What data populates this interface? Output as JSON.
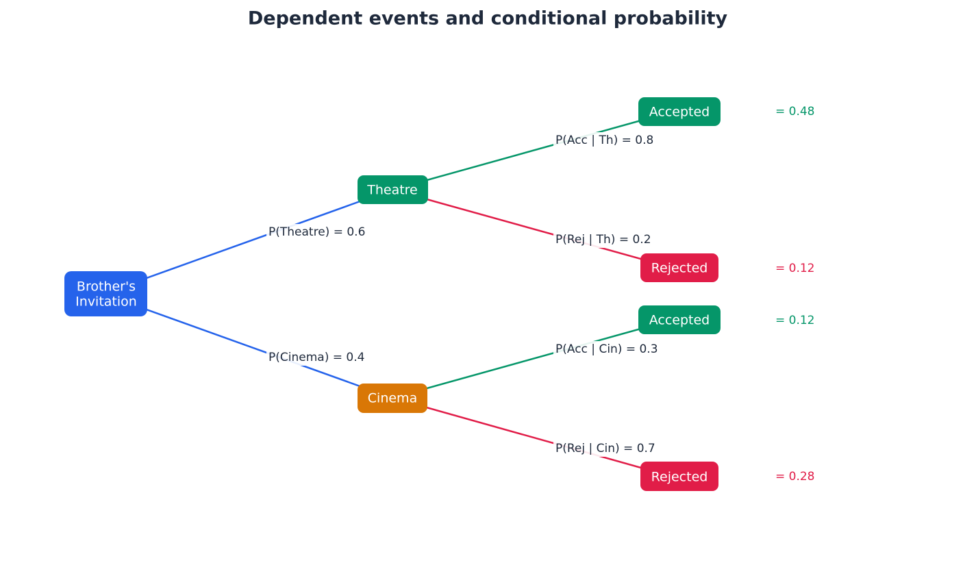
{
  "title": "Dependent events and conditional probability",
  "nodes": [
    {
      "label": [
        "Brother's",
        "Invitation"
      ]
    },
    {
      "label": [
        "Theatre"
      ]
    },
    {
      "label": [
        "Cinema"
      ]
    },
    {
      "label": [
        "Accepted"
      ]
    },
    {
      "label": [
        "Rejected"
      ]
    },
    {
      "label": [
        "Accepted"
      ]
    },
    {
      "label": [
        "Rejected"
      ]
    }
  ],
  "edges": [
    {
      "label": "P(Theatre) = 0.6"
    },
    {
      "label": "P(Cinema) = 0.4"
    },
    {
      "label": "P(Acc | Th) = 0.8"
    },
    {
      "label": "P(Rej | Th) = 0.2"
    },
    {
      "label": "P(Acc | Cin) = 0.3"
    },
    {
      "label": "P(Rej | Cin) = 0.7"
    }
  ],
  "outcomes": [
    "= 0.48",
    "= 0.12",
    "= 0.12",
    "= 0.28"
  ]
}
